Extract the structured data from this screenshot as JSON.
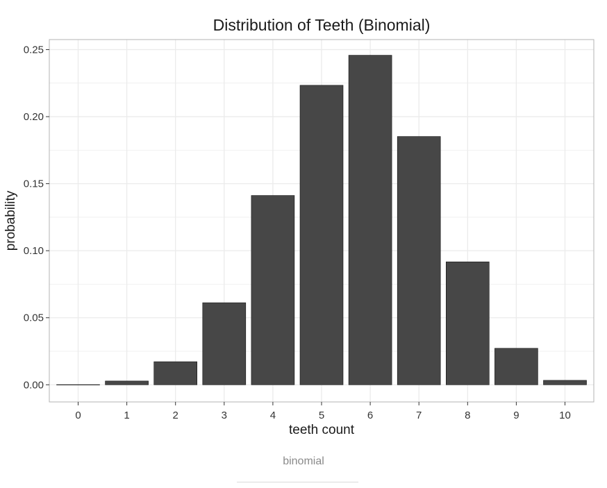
{
  "chart_data": {
    "type": "bar",
    "title": "Distribution of Teeth (Binomial)",
    "xlabel": "teeth count",
    "ylabel": "probability",
    "categories": [
      "0",
      "1",
      "2",
      "3",
      "4",
      "5",
      "6",
      "7",
      "8",
      "9",
      "10"
    ],
    "values": [
      0.0001,
      0.0028,
      0.0172,
      0.0612,
      0.1412,
      0.2234,
      0.2458,
      0.1852,
      0.0917,
      0.0272,
      0.0033
    ],
    "ylim": [
      -0.0128,
      0.2575
    ],
    "yticks": [
      0.0,
      0.05,
      0.1,
      0.15,
      0.2,
      0.25
    ],
    "ytick_labels": [
      "0.00",
      "0.05",
      "0.10",
      "0.15",
      "0.20",
      "0.25"
    ],
    "grid": true,
    "legend": "none",
    "colors": {
      "bar_fill": "#474747",
      "bar_stroke": "#111111",
      "grid": "#ebebeb",
      "panel_border": "#b3b3b3"
    }
  },
  "caption": "binomial"
}
